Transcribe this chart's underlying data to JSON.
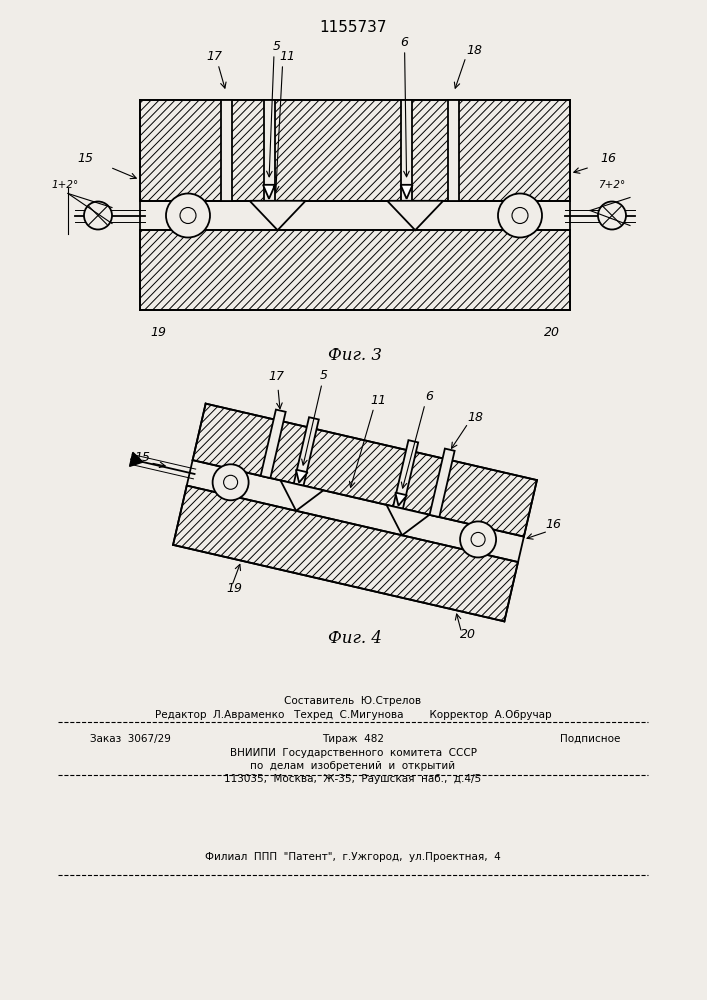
{
  "patent_number": "1155737",
  "fig3_caption": "Фиг. 3",
  "fig4_caption": "Фиг. 4",
  "footer_line1": "Составитель  Ю.Стрелов",
  "footer_line2": "Редактор  Л.Авраменко   Техред  С.Мигунова        Корректор  А.Обручар",
  "footer_line3a": "Заказ  3067/29",
  "footer_line3b": "Тираж  482",
  "footer_line3c": "Подписное",
  "footer_line4": "ВНИИПИ  Государственного  комитета  СССР",
  "footer_line5": "по  делам  изобретений  и  открытий",
  "footer_line6": "113035,  Москва,  Ж-35,  Раушская  наб.,  д.4/5",
  "footer_line7": "Филиал  ППП  \"Патент\",  г.Ужгород,  ул.Проектная,  4",
  "bg_color": "#f0ede8",
  "line_color": "#000000"
}
